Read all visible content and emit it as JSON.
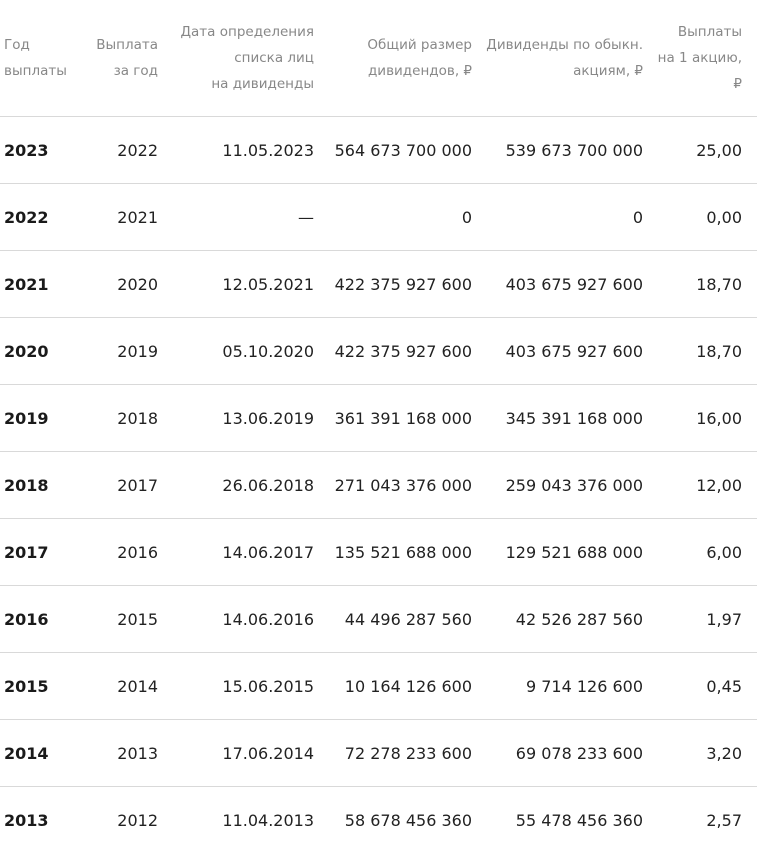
{
  "header": {
    "col_year": [
      "Год",
      "выплаты"
    ],
    "col_fy": [
      "Выплата",
      "за год"
    ],
    "col_date": [
      "Дата определения",
      "списка лиц",
      "на дивиденды"
    ],
    "col_total": [
      "Общий размер",
      "дивидендов, ₽"
    ],
    "col_ordinary": [
      "Дивиденды по обыкн.",
      "акциям, ₽"
    ],
    "col_per_share": [
      "Выплаты",
      "на 1 акцию,",
      "₽"
    ]
  },
  "rows": [
    {
      "year": "2023",
      "fy": "2022",
      "date": "11.05.2023",
      "total": "564 673 700 000",
      "ordinary": "539 673 700 000",
      "per_share": "25,00"
    },
    {
      "year": "2022",
      "fy": "2021",
      "date": "—",
      "total": "0",
      "ordinary": "0",
      "per_share": "0,00"
    },
    {
      "year": "2021",
      "fy": "2020",
      "date": "12.05.2021",
      "total": "422 375 927 600",
      "ordinary": "403 675 927 600",
      "per_share": "18,70"
    },
    {
      "year": "2020",
      "fy": "2019",
      "date": "05.10.2020",
      "total": "422 375 927 600",
      "ordinary": "403 675 927 600",
      "per_share": "18,70"
    },
    {
      "year": "2019",
      "fy": "2018",
      "date": "13.06.2019",
      "total": "361 391 168 000",
      "ordinary": "345 391 168 000",
      "per_share": "16,00"
    },
    {
      "year": "2018",
      "fy": "2017",
      "date": "26.06.2018",
      "total": "271 043 376 000",
      "ordinary": "259 043 376 000",
      "per_share": "12,00"
    },
    {
      "year": "2017",
      "fy": "2016",
      "date": "14.06.2017",
      "total": "135 521 688 000",
      "ordinary": "129 521 688 000",
      "per_share": "6,00"
    },
    {
      "year": "2016",
      "fy": "2015",
      "date": "14.06.2016",
      "total": "44 496 287 560",
      "ordinary": "42 526 287 560",
      "per_share": "1,97"
    },
    {
      "year": "2015",
      "fy": "2014",
      "date": "15.06.2015",
      "total": "10 164 126 600",
      "ordinary": "9 714 126 600",
      "per_share": "0,45"
    },
    {
      "year": "2014",
      "fy": "2013",
      "date": "17.06.2014",
      "total": "72 278 233 600",
      "ordinary": "69 078 233 600",
      "per_share": "3,20"
    },
    {
      "year": "2013",
      "fy": "2012",
      "date": "11.04.2013",
      "total": "58 678 456 360",
      "ordinary": "55 478 456 360",
      "per_share": "2,57"
    }
  ]
}
